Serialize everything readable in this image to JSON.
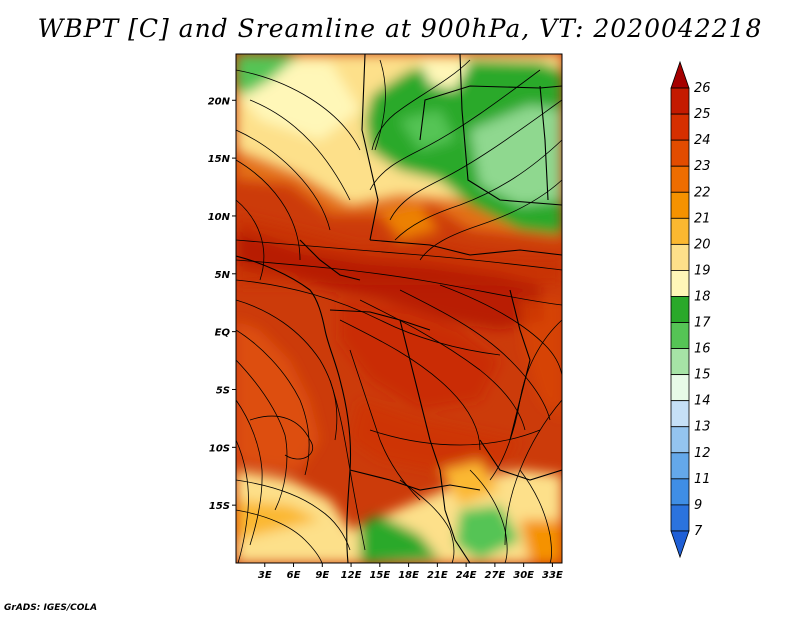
{
  "title": "WBPT [C] and Sreamline at 900hPa, VT: 2020042218",
  "credit": "GrADS: IGES/COLA",
  "map": {
    "variable": "WBPT [C]",
    "overlay": "Streamline",
    "level": "900hPa",
    "valid_time": "2020042218",
    "lon_range": [
      0,
      34
    ],
    "lat_range": [
      -20,
      24
    ],
    "lon_ticks": [
      3,
      6,
      9,
      12,
      15,
      18,
      21,
      24,
      27,
      30,
      33
    ],
    "lon_labels": [
      "3E",
      "6E",
      "9E",
      "12E",
      "15E",
      "18E",
      "21E",
      "24E",
      "27E",
      "30E",
      "33E"
    ],
    "lat_ticks": [
      20,
      15,
      10,
      5,
      0,
      -5,
      -10,
      -15
    ],
    "lat_labels": [
      "20N",
      "15N",
      "10N",
      "5N",
      "EQ",
      "5S",
      "10S",
      "15S"
    ]
  },
  "colorbar": {
    "labels": [
      "26",
      "25",
      "24",
      "23",
      "22",
      "21",
      "20",
      "19",
      "18",
      "17",
      "16",
      "15",
      "14",
      "13",
      "12",
      "11",
      "9",
      "7"
    ],
    "colors": [
      "#a50000",
      "#c41a00",
      "#d62f00",
      "#e24c00",
      "#ee6d00",
      "#f59200",
      "#fbb830",
      "#fde08a",
      "#fff7b8",
      "#2aa92a",
      "#55c455",
      "#a6e3a6",
      "#e8fae8",
      "#c6e0f7",
      "#94c4ef",
      "#64a8ea",
      "#3f8ee5",
      "#2b73de",
      "#1f5fd6"
    ]
  }
}
